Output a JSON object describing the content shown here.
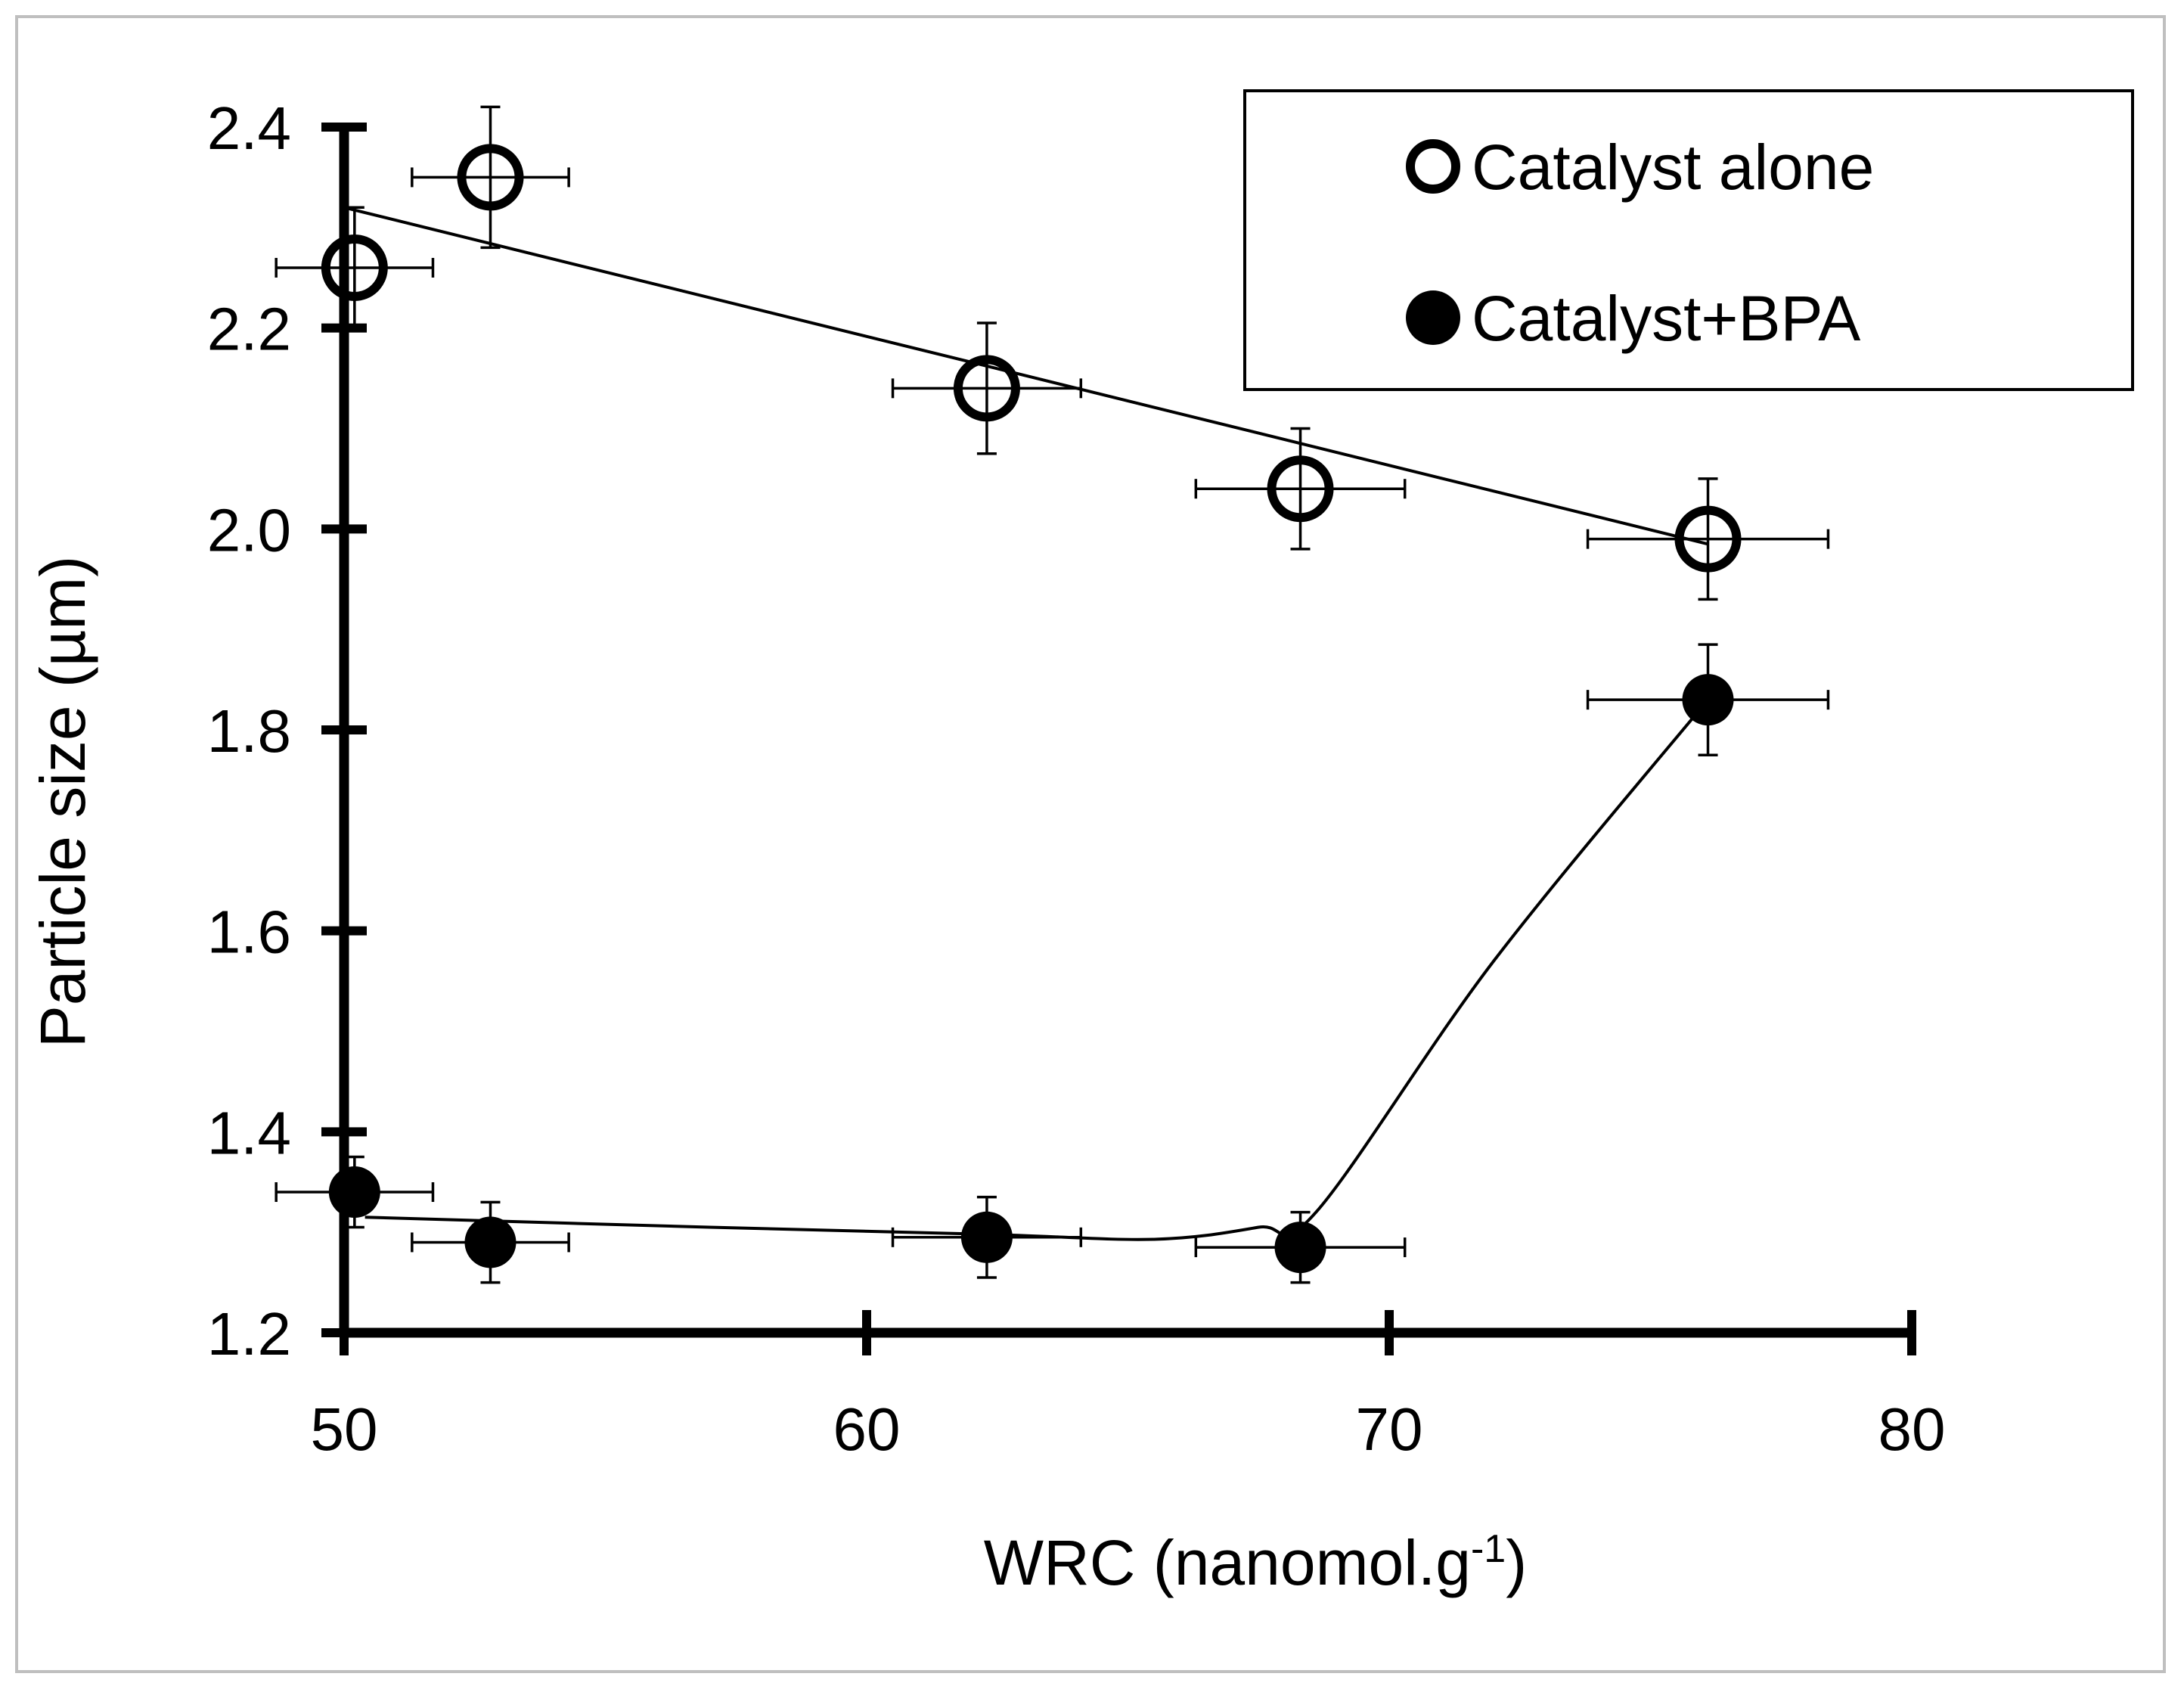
{
  "chart_data": {
    "type": "scatter",
    "title": "",
    "xlabel_main": "WRC (nanomol.g",
    "xlabel_sup": "-1",
    "xlabel_end": ")",
    "ylabel": "Particle size (µm)",
    "xlim": [
      50,
      80
    ],
    "ylim": [
      1.2,
      2.4
    ],
    "xticks": [
      50,
      60,
      70,
      80
    ],
    "xtick_labels": [
      "50",
      "60",
      "70",
      "80"
    ],
    "yticks": [
      1.2,
      1.4,
      1.6,
      1.8,
      2.0,
      2.2,
      2.4
    ],
    "ytick_labels": [
      "1.2",
      "1.4",
      "1.6",
      "1.8",
      "2.0",
      "2.2",
      "2.4"
    ],
    "legend_position": "top-right",
    "series": [
      {
        "name": "Catalyst alone",
        "marker": "open-circle",
        "x": [
          50.2,
          52.8,
          62.3,
          68.3,
          76.1
        ],
        "y": [
          2.26,
          2.35,
          2.14,
          2.04,
          1.99
        ],
        "x_err": [
          1.5,
          1.5,
          1.8,
          2.0,
          2.3
        ],
        "y_err": [
          0.06,
          0.07,
          0.065,
          0.06,
          0.06
        ],
        "trend": "linear",
        "trend_points": [
          [
            50.0,
            2.32
          ],
          [
            76.1,
            1.985
          ]
        ]
      },
      {
        "name": "Catalyst+BPA",
        "marker": "filled-circle",
        "x": [
          50.2,
          52.8,
          62.3,
          68.3,
          76.1
        ],
        "y": [
          1.34,
          1.29,
          1.295,
          1.285,
          1.83
        ],
        "x_err": [
          1.5,
          1.5,
          1.8,
          2.0,
          2.3
        ],
        "y_err": [
          0.035,
          0.04,
          0.04,
          0.035,
          0.055
        ],
        "trend": "smooth",
        "trend_points": [
          [
            50.4,
            1.315
          ],
          [
            57,
            1.305
          ],
          [
            62.3,
            1.298
          ],
          [
            65.5,
            1.293
          ],
          [
            67.5,
            1.305
          ],
          [
            68.6,
            1.32
          ],
          [
            72,
            1.57
          ],
          [
            76.1,
            1.83
          ]
        ]
      }
    ]
  }
}
